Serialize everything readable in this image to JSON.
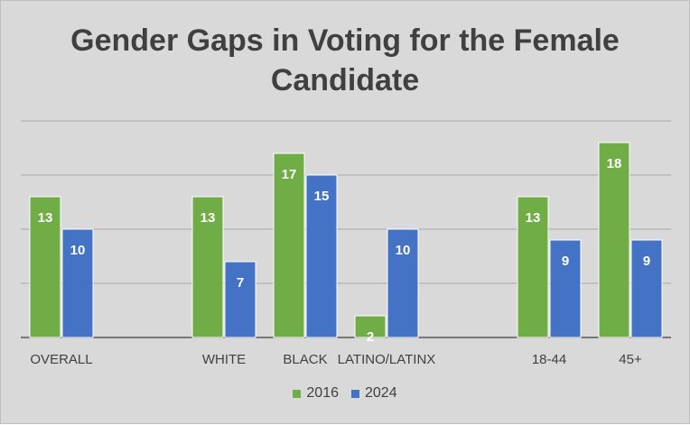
{
  "chart_data": {
    "type": "bar",
    "title": "Gender Gaps in Voting for the Female Candidate",
    "categories": [
      "OVERALL",
      "",
      "WHITE",
      "BLACK",
      "LATINO/LATINX",
      "",
      "18-44",
      "45+"
    ],
    "series": [
      {
        "name": "2016",
        "color": "#70ad47",
        "values": [
          13,
          null,
          13,
          17,
          2,
          null,
          13,
          18
        ]
      },
      {
        "name": "2024",
        "color": "#4472c4",
        "values": [
          10,
          null,
          7,
          15,
          10,
          null,
          9,
          9
        ]
      }
    ],
    "ylim": [
      0,
      20
    ],
    "grid": true,
    "legend_position": "bottom",
    "data_labels": true
  }
}
